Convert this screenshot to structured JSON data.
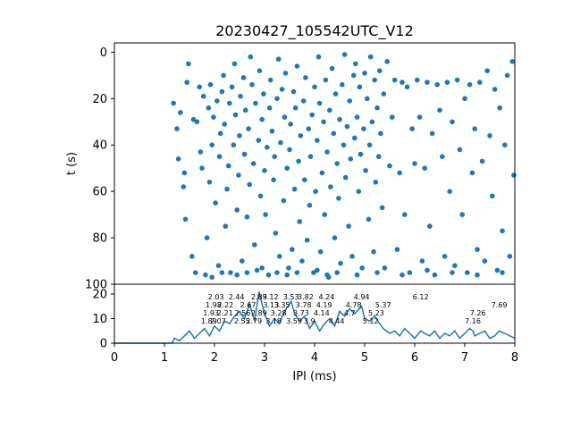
{
  "chart_data": [
    {
      "type": "scatter",
      "title": "20230427_105542UTC_V12",
      "xlabel": "",
      "ylabel": "t (s)",
      "xlim": [
        0,
        8
      ],
      "ylim": [
        100,
        -4
      ],
      "y_inverted": true,
      "yticks": [
        0,
        20,
        40,
        60,
        80,
        100
      ],
      "grid": false,
      "color": "#1f77b4",
      "note_points": "dense scatter of IPI (ms) vs time t (s); points lie between IPI 1.15 and 8 ms over t 0 to 97 s",
      "points": [
        [
          1.18,
          22
        ],
        [
          1.25,
          33
        ],
        [
          1.28,
          46
        ],
        [
          1.32,
          26
        ],
        [
          1.38,
          58
        ],
        [
          1.4,
          52
        ],
        [
          1.42,
          72
        ],
        [
          1.45,
          13
        ],
        [
          1.48,
          5
        ],
        [
          1.55,
          88
        ],
        [
          1.58,
          29
        ],
        [
          1.62,
          95
        ],
        [
          1.65,
          30
        ],
        [
          1.7,
          15
        ],
        [
          1.72,
          43
        ],
        [
          1.75,
          50
        ],
        [
          1.78,
          19
        ],
        [
          1.82,
          96
        ],
        [
          1.85,
          80
        ],
        [
          1.88,
          24
        ],
        [
          1.9,
          56
        ],
        [
          1.92,
          14
        ],
        [
          1.95,
          40
        ],
        [
          1.98,
          28
        ],
        [
          2.02,
          65
        ],
        [
          2.05,
          21
        ],
        [
          2.08,
          92
        ],
        [
          2.1,
          45
        ],
        [
          2.12,
          35
        ],
        [
          2.15,
          17
        ],
        [
          2.18,
          10
        ],
        [
          2.2,
          31
        ],
        [
          2.22,
          75
        ],
        [
          2.25,
          59
        ],
        [
          2.28,
          49
        ],
        [
          2.3,
          22
        ],
        [
          2.32,
          95
        ],
        [
          2.35,
          15
        ],
        [
          2.38,
          40
        ],
        [
          2.4,
          5
        ],
        [
          2.42,
          27
        ],
        [
          2.45,
          68
        ],
        [
          2.48,
          53
        ],
        [
          2.5,
          36
        ],
        [
          2.52,
          19
        ],
        [
          2.55,
          90
        ],
        [
          2.58,
          11
        ],
        [
          2.6,
          44
        ],
        [
          2.62,
          25
        ],
        [
          2.65,
          71
        ],
        [
          2.68,
          33
        ],
        [
          2.7,
          57
        ],
        [
          2.72,
          2
        ],
        [
          2.75,
          14
        ],
        [
          2.78,
          48
        ],
        [
          2.8,
          83
        ],
        [
          2.82,
          22
        ],
        [
          2.85,
          94
        ],
        [
          2.88,
          38
        ],
        [
          2.9,
          8
        ],
        [
          2.92,
          62
        ],
        [
          2.95,
          29
        ],
        [
          2.98,
          18
        ],
        [
          3.0,
          51
        ],
        [
          3.02,
          70
        ],
        [
          3.05,
          41
        ],
        [
          3.08,
          96
        ],
        [
          3.1,
          24
        ],
        [
          3.12,
          12
        ],
        [
          3.15,
          34
        ],
        [
          3.18,
          55
        ],
        [
          3.2,
          45
        ],
        [
          3.22,
          78
        ],
        [
          3.25,
          20
        ],
        [
          3.28,
          3
        ],
        [
          3.3,
          88
        ],
        [
          3.32,
          39
        ],
        [
          3.35,
          16
        ],
        [
          3.38,
          64
        ],
        [
          3.4,
          28
        ],
        [
          3.42,
          9
        ],
        [
          3.45,
          50
        ],
        [
          3.48,
          93
        ],
        [
          3.5,
          42
        ],
        [
          3.52,
          31
        ],
        [
          3.55,
          85
        ],
        [
          3.58,
          17
        ],
        [
          3.6,
          59
        ],
        [
          3.62,
          24
        ],
        [
          3.65,
          6
        ],
        [
          3.68,
          47
        ],
        [
          3.7,
          73
        ],
        [
          3.72,
          36
        ],
        [
          3.75,
          90
        ],
        [
          3.78,
          21
        ],
        [
          3.8,
          55
        ],
        [
          3.82,
          11
        ],
        [
          3.85,
          81
        ],
        [
          3.88,
          33
        ],
        [
          3.9,
          66
        ],
        [
          3.92,
          45
        ],
        [
          3.95,
          27
        ],
        [
          3.98,
          95
        ],
        [
          4.0,
          15
        ],
        [
          4.02,
          60
        ],
        [
          4.05,
          38
        ],
        [
          4.08,
          2
        ],
        [
          4.1,
          22
        ],
        [
          4.12,
          86
        ],
        [
          4.15,
          52
        ],
        [
          4.18,
          30
        ],
        [
          4.2,
          70
        ],
        [
          4.22,
          12
        ],
        [
          4.25,
          43
        ],
        [
          4.28,
          97
        ],
        [
          4.3,
          25
        ],
        [
          4.32,
          58
        ],
        [
          4.35,
          7
        ],
        [
          4.38,
          35
        ],
        [
          4.4,
          80
        ],
        [
          4.42,
          18
        ],
        [
          4.45,
          48
        ],
        [
          4.48,
          63
        ],
        [
          4.5,
          29
        ],
        [
          4.52,
          91
        ],
        [
          4.55,
          14
        ],
        [
          4.58,
          40
        ],
        [
          4.6,
          1
        ],
        [
          4.62,
          54
        ],
        [
          4.65,
          32
        ],
        [
          4.68,
          75
        ],
        [
          4.7,
          21
        ],
        [
          4.72,
          46
        ],
        [
          4.75,
          88
        ],
        [
          4.78,
          10
        ],
        [
          4.8,
          37
        ],
        [
          4.82,
          5
        ],
        [
          4.85,
          28
        ],
        [
          4.88,
          60
        ],
        [
          4.9,
          15
        ],
        [
          4.92,
          44
        ],
        [
          4.95,
          93
        ],
        [
          4.98,
          33
        ],
        [
          5.0,
          9
        ],
        [
          5.02,
          51
        ],
        [
          5.05,
          20
        ],
        [
          5.08,
          72
        ],
        [
          5.1,
          40
        ],
        [
          5.12,
          2
        ],
        [
          5.15,
          30
        ],
        [
          5.18,
          86
        ],
        [
          5.2,
          12
        ],
        [
          5.22,
          56
        ],
        [
          5.25,
          24
        ],
        [
          5.28,
          45
        ],
        [
          5.3,
          8
        ],
        [
          5.32,
          35
        ],
        [
          5.35,
          67
        ],
        [
          5.38,
          18
        ],
        [
          5.4,
          93
        ],
        [
          5.45,
          4
        ],
        [
          5.5,
          49
        ],
        [
          5.55,
          28
        ],
        [
          5.6,
          12
        ],
        [
          5.65,
          85
        ],
        [
          5.7,
          52
        ],
        [
          5.75,
          13
        ],
        [
          5.8,
          70
        ],
        [
          5.85,
          15
        ],
        [
          5.9,
          95
        ],
        [
          5.95,
          33
        ],
        [
          6.0,
          48
        ],
        [
          6.05,
          12
        ],
        [
          6.1,
          28
        ],
        [
          6.15,
          90
        ],
        [
          6.2,
          50
        ],
        [
          6.25,
          13
        ],
        [
          6.3,
          75
        ],
        [
          6.35,
          35
        ],
        [
          6.4,
          96
        ],
        [
          6.45,
          14
        ],
        [
          6.5,
          25
        ],
        [
          6.55,
          45
        ],
        [
          6.6,
          88
        ],
        [
          6.65,
          13
        ],
        [
          6.7,
          60
        ],
        [
          6.75,
          30
        ],
        [
          6.8,
          92
        ],
        [
          6.85,
          12
        ],
        [
          6.9,
          42
        ],
        [
          6.95,
          70
        ],
        [
          7.0,
          20
        ],
        [
          7.05,
          95
        ],
        [
          7.1,
          14
        ],
        [
          7.15,
          52
        ],
        [
          7.2,
          33
        ],
        [
          7.25,
          85
        ],
        [
          7.3,
          13
        ],
        [
          7.35,
          47
        ],
        [
          7.4,
          90
        ],
        [
          7.45,
          8
        ],
        [
          7.5,
          36
        ],
        [
          7.55,
          62
        ],
        [
          7.6,
          16
        ],
        [
          7.65,
          94
        ],
        [
          7.7,
          24
        ],
        [
          7.75,
          77
        ],
        [
          7.8,
          40
        ],
        [
          7.85,
          10
        ],
        [
          7.9,
          88
        ],
        [
          7.95,
          4
        ],
        [
          7.98,
          53
        ],
        [
          2.15,
          95
        ],
        [
          2.45,
          96
        ],
        [
          2.95,
          93
        ],
        [
          3.25,
          95
        ],
        [
          3.65,
          95
        ],
        [
          4.05,
          94
        ],
        [
          4.45,
          95
        ],
        [
          4.85,
          96
        ],
        [
          5.25,
          95
        ],
        [
          5.75,
          96
        ],
        [
          6.25,
          94
        ],
        [
          6.75,
          95
        ],
        [
          7.25,
          96
        ],
        [
          7.75,
          95
        ],
        [
          1.95,
          97
        ],
        [
          2.65,
          95
        ],
        [
          3.45,
          96
        ],
        [
          4.25,
          96
        ]
      ]
    },
    {
      "type": "line",
      "title": "",
      "xlabel": "IPI (ms)",
      "ylabel": "",
      "xlim": [
        0,
        8
      ],
      "ylim": [
        0,
        24
      ],
      "xticks": [
        0,
        1,
        2,
        3,
        4,
        5,
        6,
        7,
        8
      ],
      "yticks": [
        0,
        10,
        20
      ],
      "grid": false,
      "color": "#1f77b4",
      "series": [
        {
          "x": [
            0,
            1.0,
            1.15,
            1.2,
            1.3,
            1.4,
            1.5,
            1.6,
            1.7,
            1.8,
            1.9,
            2.0,
            2.1,
            2.2,
            2.3,
            2.4,
            2.5,
            2.6,
            2.7,
            2.8,
            2.89,
            3.0,
            3.1,
            3.2,
            3.3,
            3.4,
            3.53,
            3.6,
            3.7,
            3.8,
            3.9,
            4.0,
            4.1,
            4.2,
            4.3,
            4.4,
            4.5,
            4.6,
            4.7,
            4.8,
            4.94,
            5.0,
            5.1,
            5.2,
            5.3,
            5.37,
            5.5,
            5.6,
            5.7,
            5.8,
            5.9,
            6.0,
            6.12,
            6.2,
            6.3,
            6.4,
            6.5,
            6.6,
            6.7,
            6.8,
            6.9,
            7.0,
            7.1,
            7.16,
            7.2,
            7.3,
            7.4,
            7.5,
            7.6,
            7.69,
            7.8,
            7.9,
            8.0
          ],
          "y": [
            0,
            0,
            0,
            2,
            1,
            3,
            5,
            2,
            4,
            6,
            3,
            7,
            5,
            9,
            8,
            11,
            13,
            10,
            16,
            9,
            21,
            12,
            7,
            10,
            8,
            13,
            17,
            12,
            9,
            11,
            6,
            9,
            5,
            8,
            10,
            7,
            13,
            11,
            14,
            12,
            15,
            10,
            9,
            11,
            8,
            6,
            4,
            5,
            3,
            6,
            4,
            2,
            5,
            4,
            3,
            5,
            2,
            4,
            3,
            5,
            2,
            4,
            6,
            5,
            3,
            4,
            5,
            2,
            3,
            5,
            4,
            3,
            2
          ]
        }
      ],
      "peak_labels": [
        "1.89",
        "1.93",
        "1.98",
        "2.03",
        "2.07",
        "2.21",
        "2.22",
        "2.44",
        "2.55",
        "2.56",
        "2.67",
        "2.89",
        "2.79",
        "2.89",
        "3.13",
        "3.12",
        "3.18",
        "3.28",
        "3.35",
        "3.53",
        "3.59",
        "3.73",
        "3.78",
        "3.82",
        "3.9",
        "4.14",
        "4.19",
        "4.24",
        "4.44",
        "4.7",
        "4.78",
        "4.94",
        "5.12",
        "5.23",
        "5.37",
        "6.12",
        "7.16",
        "7.26",
        "7.69"
      ]
    }
  ]
}
